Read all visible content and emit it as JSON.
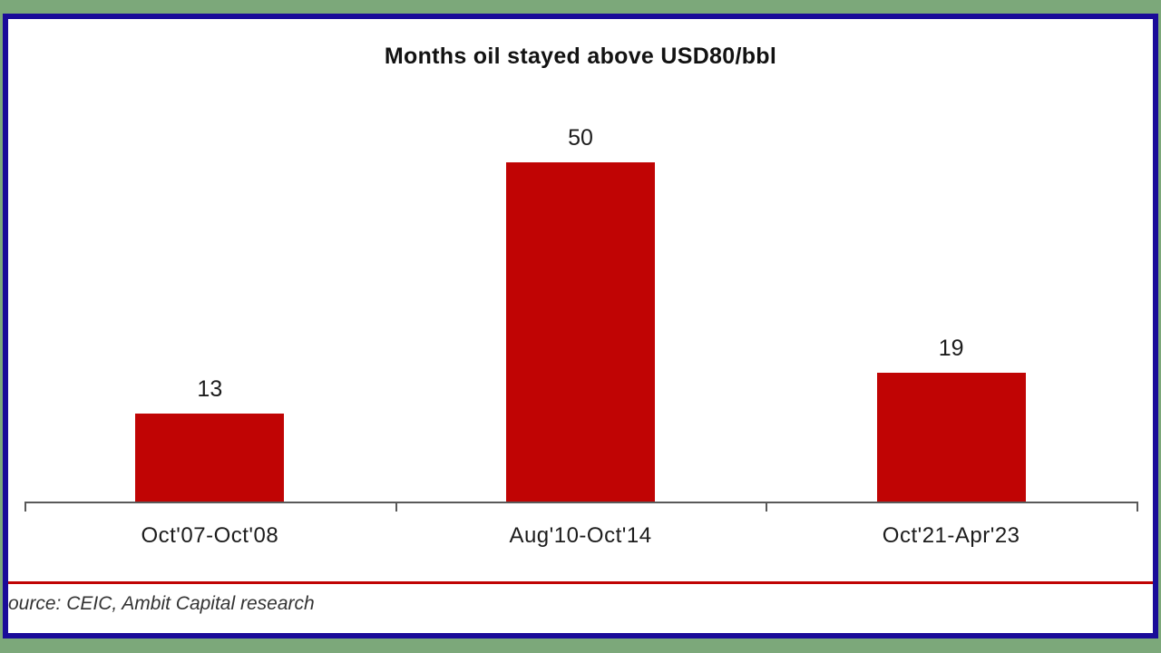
{
  "frame": {
    "background_color": "#7ca87a",
    "border_color": "#1a0b99",
    "panel_color": "#ffffff"
  },
  "chart_data": {
    "type": "bar",
    "title": "Months oil stayed above USD80/bbl",
    "categories": [
      "Oct'07-Oct'08",
      "Aug'10-Oct'14",
      "Oct'21-Apr'23"
    ],
    "values": [
      13,
      50,
      19
    ],
    "xlabel": "",
    "ylabel": "",
    "ylim": [
      0,
      50
    ],
    "grid": false,
    "legend": "none",
    "bar_color": "#c00404",
    "axis_color": "#595959",
    "data_labels_shown": true
  },
  "footer": {
    "source_text": "ource: CEIC, Ambit Capital research",
    "divider_color": "#c00404"
  }
}
